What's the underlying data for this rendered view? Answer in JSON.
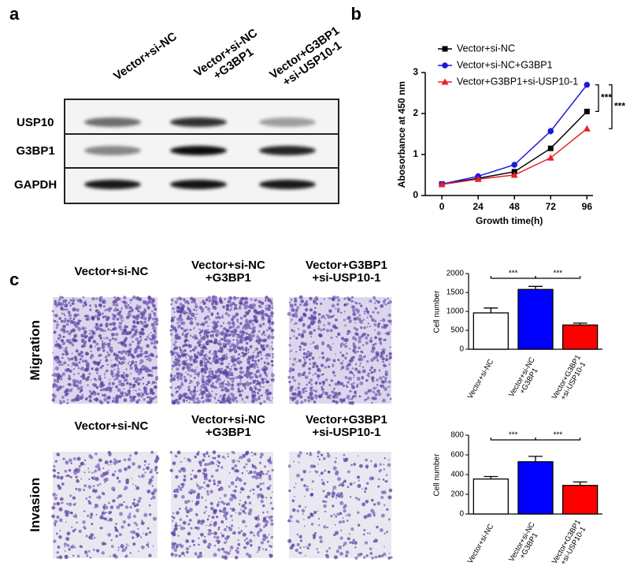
{
  "panel_labels": [
    "a",
    "b",
    "c"
  ],
  "blot": {
    "columns": [
      "Vector+si-NC",
      "Vector+si-NC\n+G3BP1",
      "Vector+G3BP1\n+si-USP10-1"
    ],
    "rows": [
      "USP10",
      "G3BP1",
      "GAPDH"
    ]
  },
  "micrographs": [
    {
      "label": "Migration",
      "columns": [
        "Vector+si-NC",
        "Vector+si-NC\n+G3BP1",
        "Vector+G3BP1\n+si-USP10-1"
      ]
    },
    {
      "label": "Invasion",
      "columns": [
        "Vector+si-NC",
        "Vector+si-NC\n+G3BP1",
        "Vector+G3BP1\n+si-USP10-1"
      ]
    }
  ],
  "chart_data": [
    {
      "type": "line",
      "xlabel": "Growth time(h)",
      "ylabel": "Abosorbance  at 450 nm",
      "x": [
        0,
        24,
        48,
        72,
        96
      ],
      "xlim": [
        -11,
        100
      ],
      "xticks": [
        0,
        24,
        48,
        72,
        96
      ],
      "ylim": [
        0,
        3
      ],
      "yticks": [
        0,
        1,
        2,
        3
      ],
      "series": [
        {
          "name": "Vector+si-NC",
          "color": "#000000",
          "marker": "square",
          "values": [
            0.28,
            0.42,
            0.58,
            1.15,
            2.05
          ],
          "errors": [
            0.02,
            0.02,
            0.03,
            0.05,
            0.03
          ]
        },
        {
          "name": "Vector+si-NC+G3BP1",
          "color": "#1a1adf",
          "marker": "circle",
          "values": [
            0.28,
            0.47,
            0.75,
            1.57,
            2.7
          ],
          "errors": [
            0.02,
            0.03,
            0.05,
            0.08,
            0.06
          ]
        },
        {
          "name": "Vector+G3BP1+si-USP10-1",
          "color": "#e8202a",
          "marker": "triangle",
          "values": [
            0.27,
            0.4,
            0.5,
            0.92,
            1.63
          ],
          "errors": [
            0.02,
            0.02,
            0.03,
            0.07,
            0.03
          ]
        }
      ],
      "annotations": [
        "***",
        "***"
      ]
    },
    {
      "type": "bar",
      "ylabel": "Cell number",
      "categories": [
        "Vector+si-NC",
        "Vector+si-NC\n+G3BP1",
        "Vector+G3BP1\n+si-USP10-1"
      ],
      "values": [
        960,
        1580,
        640
      ],
      "errors": [
        130,
        80,
        50
      ],
      "colors": [
        "#ffffff",
        "#0000ff",
        "#ff0000"
      ],
      "ylim": [
        0,
        2000
      ],
      "yticks": [
        0,
        500,
        1000,
        1500,
        2000
      ],
      "annotations": [
        "***",
        "***"
      ]
    },
    {
      "type": "bar",
      "ylabel": "Cell number",
      "categories": [
        "Vector+si-NC",
        "Vector+si-NC\n+G3BP1",
        "Vector+G3BP1\n+si-USP10-1"
      ],
      "values": [
        355,
        530,
        290
      ],
      "errors": [
        25,
        55,
        35
      ],
      "colors": [
        "#ffffff",
        "#0000ff",
        "#ff0000"
      ],
      "ylim": [
        0,
        800
      ],
      "yticks": [
        0,
        200,
        400,
        600,
        800
      ],
      "annotations": [
        "***",
        "***"
      ]
    }
  ]
}
